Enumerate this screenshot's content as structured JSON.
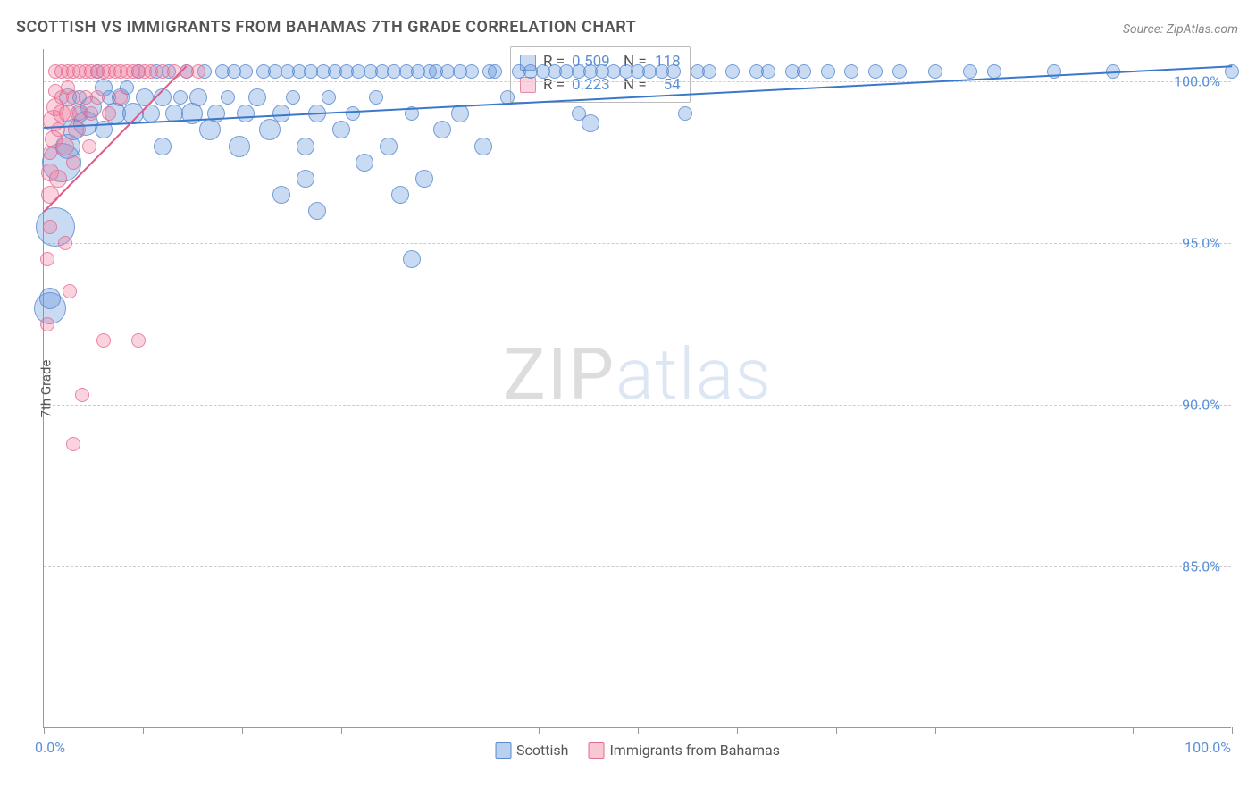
{
  "title": "SCOTTISH VS IMMIGRANTS FROM BAHAMAS 7TH GRADE CORRELATION CHART",
  "source": "Source: ZipAtlas.com",
  "y_axis_title": "7th Grade",
  "watermark": {
    "left": "ZIP",
    "right": "atlas"
  },
  "chart": {
    "type": "scatter",
    "background_color": "#ffffff",
    "grid_color": "#cccccc",
    "axis_color": "#999999",
    "tick_label_color": "#5b8fd6",
    "xlim": [
      0,
      100
    ],
    "ylim": [
      80,
      101
    ],
    "x_ticks": [
      0,
      8.33,
      16.67,
      25,
      33.33,
      41.67,
      50,
      58.33,
      66.67,
      75,
      83.33,
      91.67,
      100
    ],
    "x_tick_labels_shown": {
      "0": "0.0%",
      "100": "100.0%"
    },
    "y_ticks": [
      85,
      90,
      95,
      100
    ],
    "y_tick_labels": [
      "85.0%",
      "90.0%",
      "95.0%",
      "100.0%"
    ],
    "series": [
      {
        "name": "Scottish",
        "color_fill": "rgba(100,150,220,0.35)",
        "color_stroke": "rgba(80,130,200,0.7)",
        "trend_color": "#3b78c9",
        "trend": {
          "x1": 0,
          "y1": 98.6,
          "x2": 100,
          "y2": 100.5
        },
        "R": "0.509",
        "N": "118",
        "points": [
          {
            "x": 0.5,
            "y": 93.0,
            "r": 18
          },
          {
            "x": 0.5,
            "y": 93.3,
            "r": 12
          },
          {
            "x": 1,
            "y": 95.5,
            "r": 22
          },
          {
            "x": 1.5,
            "y": 97.5,
            "r": 22
          },
          {
            "x": 2,
            "y": 98.0,
            "r": 14
          },
          {
            "x": 2,
            "y": 99.5,
            "r": 10
          },
          {
            "x": 2.5,
            "y": 98.5,
            "r": 12
          },
          {
            "x": 3,
            "y": 99.0,
            "r": 10
          },
          {
            "x": 3,
            "y": 99.5,
            "r": 8
          },
          {
            "x": 3.5,
            "y": 98.7,
            "r": 14
          },
          {
            "x": 4,
            "y": 99.2,
            "r": 12
          },
          {
            "x": 4.5,
            "y": 100.3,
            "r": 8
          },
          {
            "x": 5,
            "y": 99.8,
            "r": 10
          },
          {
            "x": 5,
            "y": 98.5,
            "r": 10
          },
          {
            "x": 5.5,
            "y": 99.5,
            "r": 8
          },
          {
            "x": 6,
            "y": 99.0,
            "r": 12
          },
          {
            "x": 6.5,
            "y": 99.5,
            "r": 10
          },
          {
            "x": 7,
            "y": 99.8,
            "r": 8
          },
          {
            "x": 7.5,
            "y": 99.0,
            "r": 12
          },
          {
            "x": 8,
            "y": 100.3,
            "r": 8
          },
          {
            "x": 8.5,
            "y": 99.5,
            "r": 10
          },
          {
            "x": 9,
            "y": 99.0,
            "r": 10
          },
          {
            "x": 9.5,
            "y": 100.3,
            "r": 8
          },
          {
            "x": 10,
            "y": 99.5,
            "r": 10
          },
          {
            "x": 10,
            "y": 98.0,
            "r": 10
          },
          {
            "x": 10.5,
            "y": 100.3,
            "r": 8
          },
          {
            "x": 11,
            "y": 99.0,
            "r": 10
          },
          {
            "x": 11.5,
            "y": 99.5,
            "r": 8
          },
          {
            "x": 12,
            "y": 100.3,
            "r": 8
          },
          {
            "x": 12.5,
            "y": 99.0,
            "r": 12
          },
          {
            "x": 13,
            "y": 99.5,
            "r": 10
          },
          {
            "x": 13.5,
            "y": 100.3,
            "r": 8
          },
          {
            "x": 14,
            "y": 98.5,
            "r": 12
          },
          {
            "x": 14.5,
            "y": 99.0,
            "r": 10
          },
          {
            "x": 15,
            "y": 100.3,
            "r": 8
          },
          {
            "x": 15.5,
            "y": 99.5,
            "r": 8
          },
          {
            "x": 16,
            "y": 100.3,
            "r": 8
          },
          {
            "x": 16.5,
            "y": 98.0,
            "r": 12
          },
          {
            "x": 17,
            "y": 99.0,
            "r": 10
          },
          {
            "x": 17,
            "y": 100.3,
            "r": 8
          },
          {
            "x": 18,
            "y": 99.5,
            "r": 10
          },
          {
            "x": 18.5,
            "y": 100.3,
            "r": 8
          },
          {
            "x": 19,
            "y": 98.5,
            "r": 12
          },
          {
            "x": 19.5,
            "y": 100.3,
            "r": 8
          },
          {
            "x": 20,
            "y": 99.0,
            "r": 10
          },
          {
            "x": 20,
            "y": 96.5,
            "r": 10
          },
          {
            "x": 20.5,
            "y": 100.3,
            "r": 8
          },
          {
            "x": 21,
            "y": 99.5,
            "r": 8
          },
          {
            "x": 21.5,
            "y": 100.3,
            "r": 8
          },
          {
            "x": 22,
            "y": 98.0,
            "r": 10
          },
          {
            "x": 22,
            "y": 97.0,
            "r": 10
          },
          {
            "x": 22.5,
            "y": 100.3,
            "r": 8
          },
          {
            "x": 23,
            "y": 99.0,
            "r": 10
          },
          {
            "x": 23,
            "y": 96.0,
            "r": 10
          },
          {
            "x": 23.5,
            "y": 100.3,
            "r": 8
          },
          {
            "x": 24,
            "y": 99.5,
            "r": 8
          },
          {
            "x": 24.5,
            "y": 100.3,
            "r": 8
          },
          {
            "x": 25,
            "y": 98.5,
            "r": 10
          },
          {
            "x": 25.5,
            "y": 100.3,
            "r": 8
          },
          {
            "x": 26,
            "y": 99.0,
            "r": 8
          },
          {
            "x": 26.5,
            "y": 100.3,
            "r": 8
          },
          {
            "x": 27,
            "y": 97.5,
            "r": 10
          },
          {
            "x": 27.5,
            "y": 100.3,
            "r": 8
          },
          {
            "x": 28,
            "y": 99.5,
            "r": 8
          },
          {
            "x": 28.5,
            "y": 100.3,
            "r": 8
          },
          {
            "x": 29,
            "y": 98.0,
            "r": 10
          },
          {
            "x": 29.5,
            "y": 100.3,
            "r": 8
          },
          {
            "x": 30,
            "y": 96.5,
            "r": 10
          },
          {
            "x": 30.5,
            "y": 100.3,
            "r": 8
          },
          {
            "x": 31,
            "y": 99.0,
            "r": 8
          },
          {
            "x": 31,
            "y": 94.5,
            "r": 10
          },
          {
            "x": 31.5,
            "y": 100.3,
            "r": 8
          },
          {
            "x": 32,
            "y": 97.0,
            "r": 10
          },
          {
            "x": 32.5,
            "y": 100.3,
            "r": 8
          },
          {
            "x": 33,
            "y": 100.3,
            "r": 8
          },
          {
            "x": 33.5,
            "y": 98.5,
            "r": 10
          },
          {
            "x": 34,
            "y": 100.3,
            "r": 8
          },
          {
            "x": 35,
            "y": 99.0,
            "r": 10
          },
          {
            "x": 35,
            "y": 100.3,
            "r": 8
          },
          {
            "x": 36,
            "y": 100.3,
            "r": 8
          },
          {
            "x": 37,
            "y": 98.0,
            "r": 10
          },
          {
            "x": 37.5,
            "y": 100.3,
            "r": 8
          },
          {
            "x": 38,
            "y": 100.3,
            "r": 8
          },
          {
            "x": 39,
            "y": 99.5,
            "r": 8
          },
          {
            "x": 40,
            "y": 100.3,
            "r": 8
          },
          {
            "x": 41,
            "y": 100.3,
            "r": 8
          },
          {
            "x": 42,
            "y": 100.3,
            "r": 8
          },
          {
            "x": 43,
            "y": 100.3,
            "r": 8
          },
          {
            "x": 44,
            "y": 100.3,
            "r": 8
          },
          {
            "x": 45,
            "y": 100.3,
            "r": 8
          },
          {
            "x": 45,
            "y": 99.0,
            "r": 8
          },
          {
            "x": 46,
            "y": 100.3,
            "r": 8
          },
          {
            "x": 46,
            "y": 98.7,
            "r": 10
          },
          {
            "x": 47,
            "y": 100.3,
            "r": 8
          },
          {
            "x": 48,
            "y": 100.3,
            "r": 8
          },
          {
            "x": 49,
            "y": 100.3,
            "r": 8
          },
          {
            "x": 50,
            "y": 100.3,
            "r": 8
          },
          {
            "x": 51,
            "y": 100.3,
            "r": 8
          },
          {
            "x": 52,
            "y": 100.3,
            "r": 8
          },
          {
            "x": 53,
            "y": 100.3,
            "r": 8
          },
          {
            "x": 54,
            "y": 99.0,
            "r": 8
          },
          {
            "x": 55,
            "y": 100.3,
            "r": 8
          },
          {
            "x": 56,
            "y": 100.3,
            "r": 8
          },
          {
            "x": 58,
            "y": 100.3,
            "r": 8
          },
          {
            "x": 60,
            "y": 100.3,
            "r": 8
          },
          {
            "x": 61,
            "y": 100.3,
            "r": 8
          },
          {
            "x": 63,
            "y": 100.3,
            "r": 8
          },
          {
            "x": 64,
            "y": 100.3,
            "r": 8
          },
          {
            "x": 66,
            "y": 100.3,
            "r": 8
          },
          {
            "x": 68,
            "y": 100.3,
            "r": 8
          },
          {
            "x": 70,
            "y": 100.3,
            "r": 8
          },
          {
            "x": 72,
            "y": 100.3,
            "r": 8
          },
          {
            "x": 75,
            "y": 100.3,
            "r": 8
          },
          {
            "x": 78,
            "y": 100.3,
            "r": 8
          },
          {
            "x": 80,
            "y": 100.3,
            "r": 8
          },
          {
            "x": 85,
            "y": 100.3,
            "r": 8
          },
          {
            "x": 90,
            "y": 100.3,
            "r": 8
          },
          {
            "x": 100,
            "y": 100.3,
            "r": 8
          }
        ]
      },
      {
        "name": "Immigrants from Bahamas",
        "color_fill": "rgba(240,130,160,0.35)",
        "color_stroke": "rgba(225,100,140,0.7)",
        "trend_color": "#e05a8a",
        "trend": {
          "x1": 0,
          "y1": 96.0,
          "x2": 12,
          "y2": 100.5
        },
        "R": "0.223",
        "N": "54",
        "points": [
          {
            "x": 0.3,
            "y": 92.5,
            "r": 8
          },
          {
            "x": 0.3,
            "y": 94.5,
            "r": 8
          },
          {
            "x": 0.5,
            "y": 95.5,
            "r": 8
          },
          {
            "x": 0.5,
            "y": 96.5,
            "r": 10
          },
          {
            "x": 0.5,
            "y": 97.2,
            "r": 10
          },
          {
            "x": 0.5,
            "y": 97.8,
            "r": 8
          },
          {
            "x": 0.8,
            "y": 98.2,
            "r": 10
          },
          {
            "x": 0.8,
            "y": 98.8,
            "r": 12
          },
          {
            "x": 1,
            "y": 99.2,
            "r": 10
          },
          {
            "x": 1,
            "y": 99.7,
            "r": 8
          },
          {
            "x": 1,
            "y": 100.3,
            "r": 8
          },
          {
            "x": 1.2,
            "y": 97.0,
            "r": 10
          },
          {
            "x": 1.2,
            "y": 98.5,
            "r": 8
          },
          {
            "x": 1.5,
            "y": 99.0,
            "r": 10
          },
          {
            "x": 1.5,
            "y": 99.5,
            "r": 8
          },
          {
            "x": 1.5,
            "y": 100.3,
            "r": 8
          },
          {
            "x": 1.8,
            "y": 95.0,
            "r": 8
          },
          {
            "x": 1.8,
            "y": 98.0,
            "r": 10
          },
          {
            "x": 2,
            "y": 99.0,
            "r": 10
          },
          {
            "x": 2,
            "y": 99.8,
            "r": 8
          },
          {
            "x": 2,
            "y": 100.3,
            "r": 8
          },
          {
            "x": 2.2,
            "y": 93.5,
            "r": 8
          },
          {
            "x": 2.5,
            "y": 88.8,
            "r": 8
          },
          {
            "x": 2.5,
            "y": 97.5,
            "r": 8
          },
          {
            "x": 2.5,
            "y": 99.5,
            "r": 8
          },
          {
            "x": 2.5,
            "y": 100.3,
            "r": 8
          },
          {
            "x": 2.8,
            "y": 98.5,
            "r": 10
          },
          {
            "x": 3,
            "y": 99.0,
            "r": 8
          },
          {
            "x": 3,
            "y": 100.3,
            "r": 8
          },
          {
            "x": 3.2,
            "y": 90.3,
            "r": 8
          },
          {
            "x": 3.5,
            "y": 99.5,
            "r": 8
          },
          {
            "x": 3.5,
            "y": 100.3,
            "r": 8
          },
          {
            "x": 3.8,
            "y": 98.0,
            "r": 8
          },
          {
            "x": 4,
            "y": 99.0,
            "r": 8
          },
          {
            "x": 4,
            "y": 100.3,
            "r": 8
          },
          {
            "x": 4.5,
            "y": 99.5,
            "r": 8
          },
          {
            "x": 4.5,
            "y": 100.3,
            "r": 8
          },
          {
            "x": 5,
            "y": 92.0,
            "r": 8
          },
          {
            "x": 5,
            "y": 100.3,
            "r": 8
          },
          {
            "x": 5.5,
            "y": 99.0,
            "r": 8
          },
          {
            "x": 5.5,
            "y": 100.3,
            "r": 8
          },
          {
            "x": 6,
            "y": 100.3,
            "r": 8
          },
          {
            "x": 6.5,
            "y": 99.5,
            "r": 8
          },
          {
            "x": 6.5,
            "y": 100.3,
            "r": 8
          },
          {
            "x": 7,
            "y": 100.3,
            "r": 8
          },
          {
            "x": 7.5,
            "y": 100.3,
            "r": 8
          },
          {
            "x": 8,
            "y": 92.0,
            "r": 8
          },
          {
            "x": 8,
            "y": 100.3,
            "r": 8
          },
          {
            "x": 8.5,
            "y": 100.3,
            "r": 8
          },
          {
            "x": 9,
            "y": 100.3,
            "r": 8
          },
          {
            "x": 10,
            "y": 100.3,
            "r": 8
          },
          {
            "x": 11,
            "y": 100.3,
            "r": 8
          },
          {
            "x": 12,
            "y": 100.3,
            "r": 8
          },
          {
            "x": 13,
            "y": 100.3,
            "r": 8
          }
        ]
      }
    ]
  },
  "bottom_legend": [
    {
      "label": "Scottish",
      "fill": "rgba(100,150,220,0.45)",
      "stroke": "rgba(80,130,200,0.9)"
    },
    {
      "label": "Immigrants from Bahamas",
      "fill": "rgba(240,130,160,0.45)",
      "stroke": "rgba(225,100,140,0.9)"
    }
  ]
}
